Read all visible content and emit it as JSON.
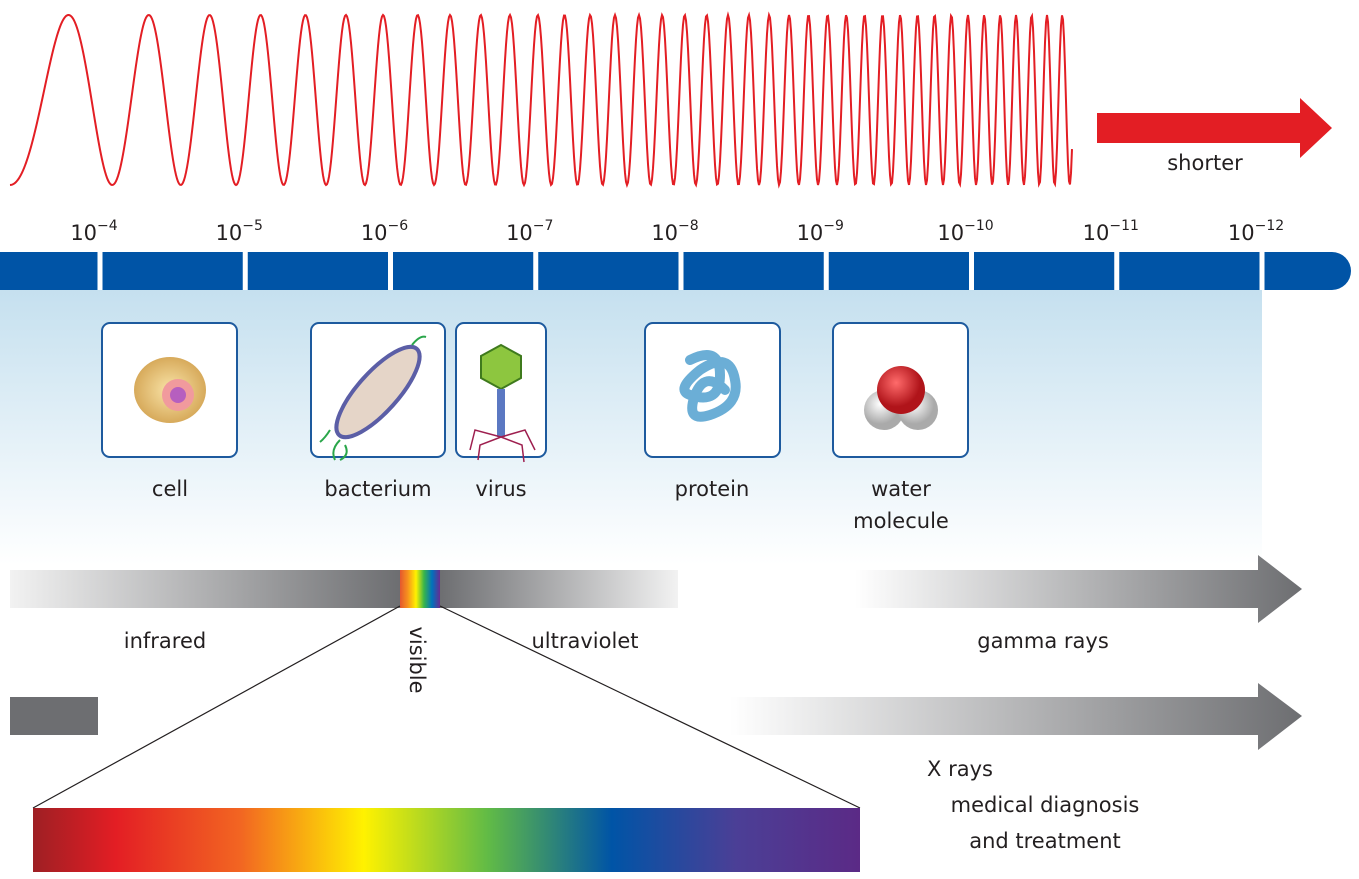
{
  "arrow_label": "shorter",
  "scale": {
    "ticks": [
      {
        "base": "10",
        "exponent": "−4"
      },
      {
        "base": "10",
        "exponent": "−5"
      },
      {
        "base": "10",
        "exponent": "−6"
      },
      {
        "base": "10",
        "exponent": "−7"
      },
      {
        "base": "10",
        "exponent": "−8"
      },
      {
        "base": "10",
        "exponent": "−9"
      },
      {
        "base": "10",
        "exponent": "−10"
      },
      {
        "base": "10",
        "exponent": "−11"
      },
      {
        "base": "10",
        "exponent": "−12"
      }
    ]
  },
  "objects": [
    {
      "label": [
        "cell"
      ]
    },
    {
      "label": [
        "bacterium"
      ]
    },
    {
      "label": [
        "virus"
      ]
    },
    {
      "label": [
        "protein"
      ]
    },
    {
      "label": [
        "water",
        "molecule"
      ]
    }
  ],
  "bands": {
    "infrared": "infrared",
    "visible": "visible",
    "ultraviolet": "ultraviolet",
    "gamma": "gamma rays",
    "xrays": "X rays",
    "use": [
      "medical diagnosis",
      "and treatment"
    ]
  }
}
